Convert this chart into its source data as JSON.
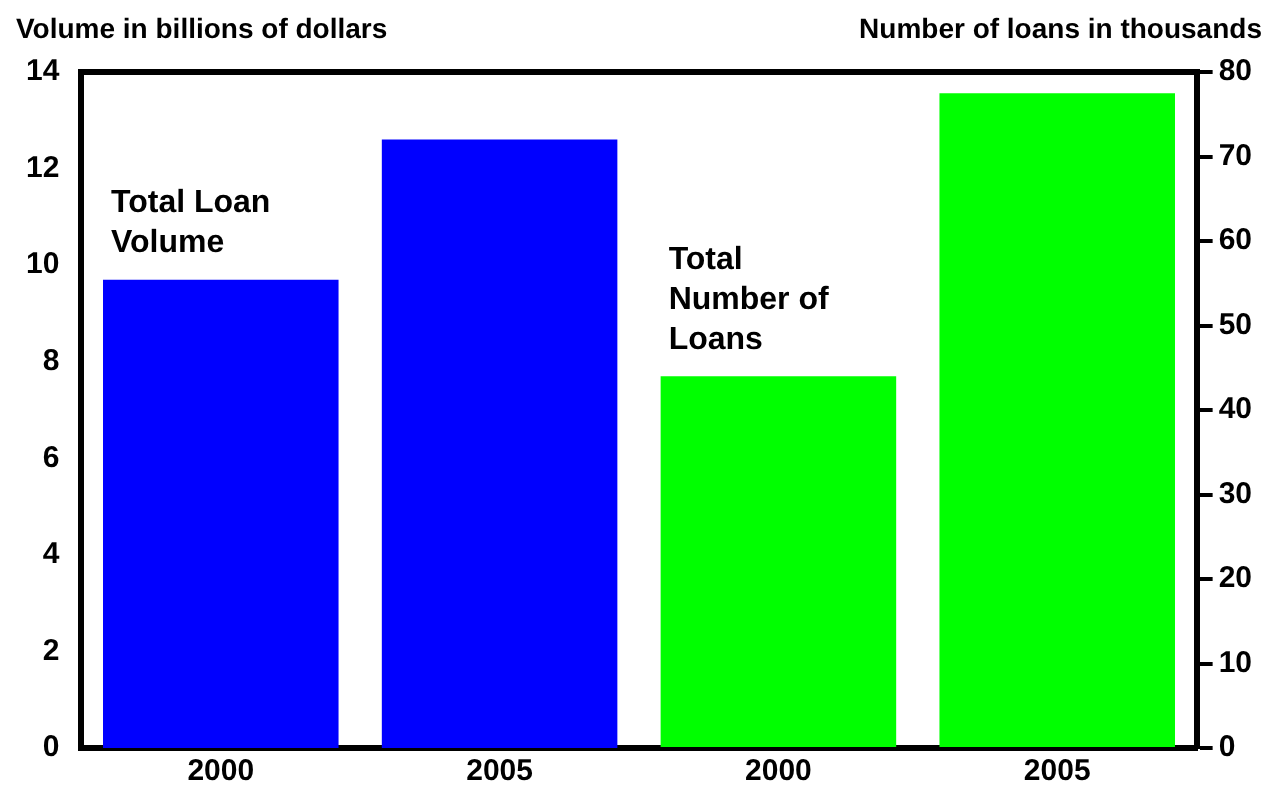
{
  "chart_data": {
    "type": "bar",
    "ylabel": "Volume in billions of dollars",
    "y2label": "Number of loans in thousands",
    "categories": [
      "2000",
      "2005",
      "2000",
      "2005"
    ],
    "series": [
      {
        "name": "Total Loan Volume",
        "color": "#0000ff",
        "values": [
          9.7,
          12.6,
          null,
          null
        ]
      },
      {
        "name": "Total Number of Loans",
        "color": "#00ff00",
        "axis": "y2",
        "values": [
          null,
          null,
          44,
          77.5
        ]
      }
    ],
    "ylim": [
      0,
      14
    ],
    "yticks": [
      0,
      2,
      4,
      6,
      8,
      10,
      12,
      14
    ],
    "y2lim": [
      0,
      80
    ],
    "y2ticks": [
      0,
      10,
      20,
      30,
      40,
      50,
      60,
      70,
      80
    ],
    "grid": false,
    "legend": false
  }
}
